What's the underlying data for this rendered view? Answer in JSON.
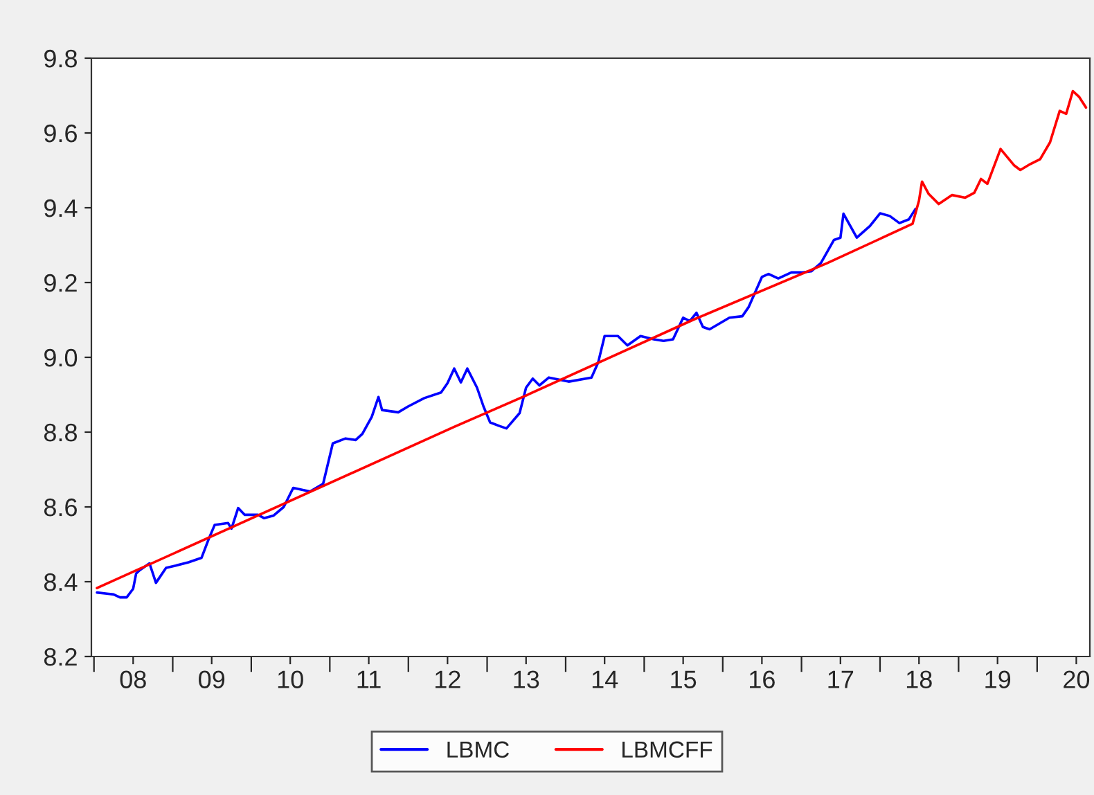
{
  "chart_data": {
    "type": "line",
    "series": [
      {
        "name": "LBMC",
        "color": "#0000ff",
        "x": [
          "2008-01-15",
          "2008-03-01",
          "2008-04-01",
          "2008-05-01",
          "2008-06-01",
          "2008-07-01",
          "2008-07-15",
          "2008-08-01",
          "2008-09-15",
          "2008-10-15",
          "2008-12-01",
          "2009-01-15",
          "2009-03-15",
          "2009-05-15",
          "2009-06-15",
          "2009-07-15",
          "2009-09-15",
          "2009-10-01",
          "2009-11-01",
          "2009-12-01",
          "2010-02-01",
          "2010-03-01",
          "2010-04-15",
          "2010-06-01",
          "2010-07-15",
          "2010-10-01",
          "2010-12-01",
          "2011-01-15",
          "2011-03-15",
          "2011-05-01",
          "2011-06-01",
          "2011-07-15",
          "2011-08-15",
          "2011-09-01",
          "2011-11-15",
          "2012-01-01",
          "2012-03-15",
          "2012-06-01",
          "2012-07-01",
          "2012-08-01",
          "2012-09-01",
          "2012-10-01",
          "2012-11-15",
          "2012-12-15",
          "2013-01-15",
          "2013-03-01",
          "2013-04-01",
          "2013-06-01",
          "2013-07-01",
          "2013-08-01",
          "2013-09-01",
          "2013-10-15",
          "2014-01-15",
          "2014-05-01",
          "2014-06-01",
          "2014-07-01",
          "2014-09-01",
          "2014-10-15",
          "2014-12-15",
          "2015-02-15",
          "2015-04-01",
          "2015-05-15",
          "2015-07-01",
          "2015-08-01",
          "2015-09-01",
          "2015-10-01",
          "2015-11-01",
          "2016-02-01",
          "2016-04-01",
          "2016-05-01",
          "2016-07-01",
          "2016-08-01",
          "2016-09-15",
          "2016-11-15",
          "2017-01-01",
          "2017-02-15",
          "2017-04-01",
          "2017-06-01",
          "2017-07-01",
          "2017-07-15",
          "2017-09-15",
          "2017-11-15",
          "2018-01-01",
          "2018-02-15",
          "2018-04-01",
          "2018-05-15",
          "2018-06-15"
        ],
        "values": [
          8.371,
          8.368,
          8.366,
          8.358,
          8.358,
          8.381,
          8.422,
          8.431,
          8.449,
          8.397,
          8.437,
          8.443,
          8.452,
          8.464,
          8.511,
          8.552,
          8.557,
          8.542,
          8.597,
          8.579,
          8.579,
          8.57,
          8.577,
          8.6,
          8.651,
          8.641,
          8.662,
          8.77,
          8.783,
          8.779,
          8.795,
          8.841,
          8.894,
          8.859,
          8.853,
          8.869,
          8.891,
          8.906,
          8.931,
          8.97,
          8.933,
          8.97,
          8.919,
          8.869,
          8.826,
          8.816,
          8.81,
          8.851,
          8.919,
          8.943,
          8.925,
          8.946,
          8.935,
          8.946,
          8.986,
          9.057,
          9.057,
          9.032,
          9.057,
          9.048,
          9.044,
          9.048,
          9.106,
          9.097,
          9.119,
          9.081,
          9.075,
          9.106,
          9.11,
          9.135,
          9.215,
          9.223,
          9.211,
          9.227,
          9.227,
          9.23,
          9.252,
          9.314,
          9.32,
          9.384,
          9.32,
          9.351,
          9.385,
          9.378,
          9.359,
          9.369,
          9.397
        ]
      },
      {
        "name": "LBMCFF",
        "color": "#ff0000",
        "x": [
          "2008-01-15",
          "2012-08-01",
          "2013-07-01",
          "2015-08-15",
          "2017-05-01",
          "2018-06-01",
          "2018-07-01",
          "2018-07-15",
          "2018-08-15",
          "2018-10-01",
          "2018-12-01",
          "2019-02-01",
          "2019-03-15",
          "2019-04-15",
          "2019-05-15",
          "2019-07-15",
          "2019-09-15",
          "2019-10-15",
          "2019-12-01",
          "2020-01-15",
          "2020-03-01",
          "2020-04-15",
          "2020-05-15",
          "2020-06-15",
          "2020-07-15",
          "2020-08-15"
        ],
        "values": [
          8.383,
          8.814,
          8.898,
          9.1,
          9.252,
          9.357,
          9.419,
          9.47,
          9.437,
          9.41,
          9.434,
          9.427,
          9.44,
          9.477,
          9.464,
          9.557,
          9.514,
          9.501,
          9.517,
          9.53,
          9.575,
          9.659,
          9.651,
          9.712,
          9.696,
          9.668
        ]
      }
    ],
    "xlim": [
      "2007-12-20",
      "2020-09-02"
    ],
    "xticks": [
      {
        "value": "2008-01-01",
        "label": null
      },
      {
        "value": "2008-07-01",
        "label": "08"
      },
      {
        "value": "2009-01-01",
        "label": null
      },
      {
        "value": "2009-07-01",
        "label": "09"
      },
      {
        "value": "2010-01-01",
        "label": null
      },
      {
        "value": "2010-07-01",
        "label": "10"
      },
      {
        "value": "2011-01-01",
        "label": null
      },
      {
        "value": "2011-07-01",
        "label": "11"
      },
      {
        "value": "2012-01-01",
        "label": null
      },
      {
        "value": "2012-07-01",
        "label": "12"
      },
      {
        "value": "2013-01-01",
        "label": null
      },
      {
        "value": "2013-07-01",
        "label": "13"
      },
      {
        "value": "2014-01-01",
        "label": null
      },
      {
        "value": "2014-07-01",
        "label": "14"
      },
      {
        "value": "2015-01-01",
        "label": null
      },
      {
        "value": "2015-07-01",
        "label": "15"
      },
      {
        "value": "2016-01-01",
        "label": null
      },
      {
        "value": "2016-07-01",
        "label": "16"
      },
      {
        "value": "2017-01-01",
        "label": null
      },
      {
        "value": "2017-07-01",
        "label": "17"
      },
      {
        "value": "2018-01-01",
        "label": null
      },
      {
        "value": "2018-07-01",
        "label": "18"
      },
      {
        "value": "2019-01-01",
        "label": null
      },
      {
        "value": "2019-07-01",
        "label": "19"
      },
      {
        "value": "2020-01-01",
        "label": null
      },
      {
        "value": "2020-07-01",
        "label": "20"
      }
    ],
    "ylim": [
      8.2,
      9.8
    ],
    "yticks": [
      8.2,
      8.4,
      8.6,
      8.8,
      {
        "value": 9.0,
        "label": "9.0"
      },
      9.2,
      9.4,
      9.6,
      9.8
    ],
    "grid": false,
    "legend": "bottom",
    "line_style": "solid",
    "marker": "none"
  }
}
